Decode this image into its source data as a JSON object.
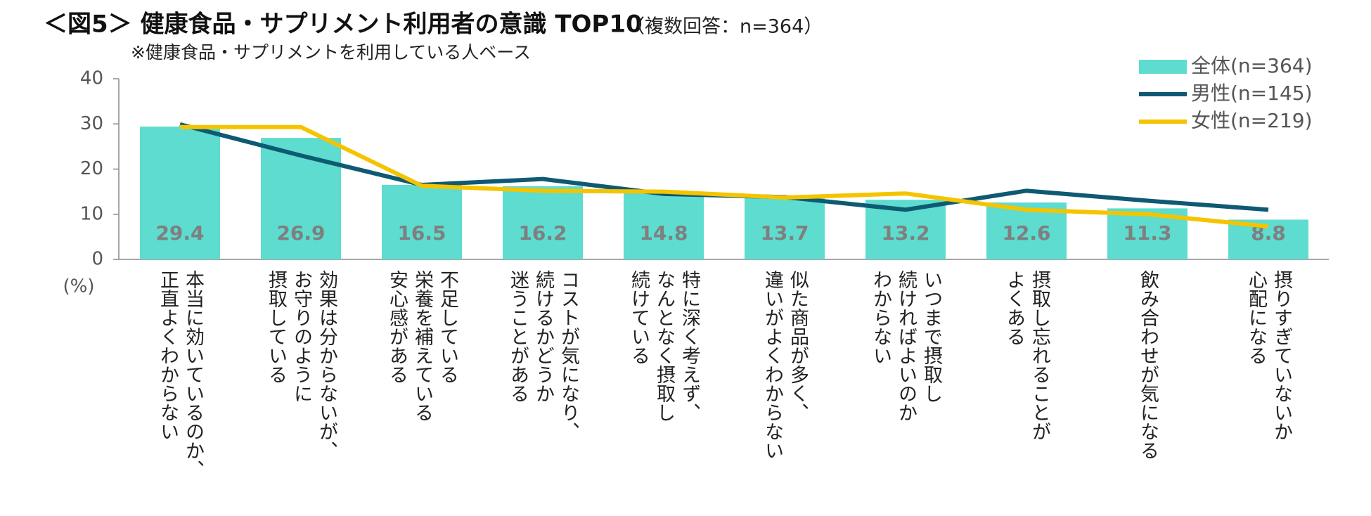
{
  "chart_data": {
    "type": "bar-line",
    "title": "＜図5＞ 健康食品・サプリメント利用者の意識 TOP10",
    "title_note": "（複数回答：n=364）",
    "subtitle": "※健康食品・サプリメントを利用している人ベース",
    "y_unit": "(%)",
    "categories": [
      "本当に効いているのか、\n正直よくわからない",
      "効果は分からないが、\nお守りのように\n摂取している",
      "不足している\n栄養を補えている\n安心感がある",
      "コストが気になり、\n続けるかどうか\n迷うことがある",
      "特に深く考えず、\nなんとなく摂取し\n続けている",
      "似た商品が多く、\n違いがよくわからない",
      "いつまで摂取し\n続ければよいのか\nわからない",
      "摂取し忘れることが\nよくある",
      "飲み合わせが気になる",
      "摂りすぎていないか\n心配になる"
    ],
    "series": [
      {
        "name": "全体(n=364)",
        "kind": "bar",
        "color": "#5ddccf",
        "values": [
          29.4,
          26.9,
          16.5,
          16.2,
          14.8,
          13.7,
          13.2,
          12.6,
          11.3,
          8.8
        ]
      },
      {
        "name": "男性(n=145)",
        "kind": "line",
        "color": "#0e5a73",
        "values": [
          29.9,
          23.0,
          16.5,
          17.8,
          14.5,
          13.8,
          11.0,
          15.2,
          13.0,
          11.0
        ]
      },
      {
        "name": "女性(n=219)",
        "kind": "line",
        "color": "#f5c400",
        "values": [
          29.3,
          29.3,
          16.3,
          15.2,
          15.0,
          13.7,
          14.6,
          11.0,
          10.0,
          7.3
        ]
      }
    ],
    "ylim": [
      0,
      40
    ],
    "yticks": [
      0,
      10,
      20,
      30,
      40
    ],
    "grid": false,
    "legend": "top-right"
  }
}
